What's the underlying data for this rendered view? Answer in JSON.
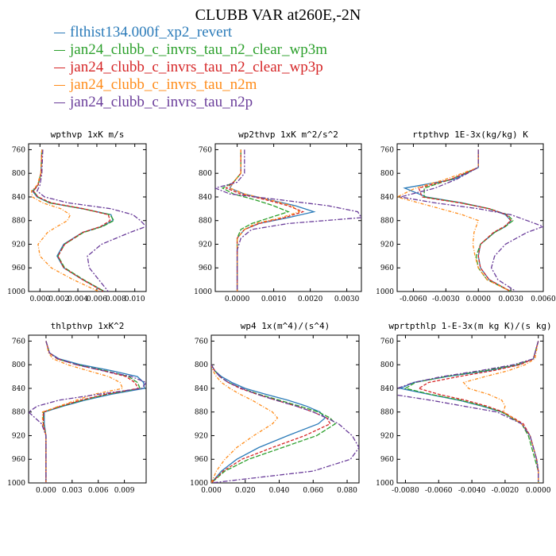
{
  "title": "CLUBB VAR at260E,-2N",
  "legend": [
    {
      "label": "flthist134.000f_xp2_revert",
      "color": "#2b7bb9"
    },
    {
      "label": "jan24_clubb_c_invrs_tau_n2_clear_wp3m",
      "color": "#2ca02c"
    },
    {
      "label": "jan24_clubb_c_invrs_tau_n2_clear_wp3p",
      "color": "#d62728"
    },
    {
      "label": "jan24_clubb_c_invrs_tau_n2m",
      "color": "#ff8c1a"
    },
    {
      "label": "jan24_clubb_c_invrs_tau_n2p",
      "color": "#6a3d9a"
    }
  ],
  "chart_data": [
    {
      "type": "line",
      "title": "wpthvp  1xK m/s",
      "xlim": [
        -0.0012,
        0.0112
      ],
      "ylim": [
        750,
        1000
      ],
      "xticks": [
        0.0,
        0.002,
        0.004,
        0.006,
        0.008,
        0.01
      ],
      "xticklabels": [
        "0.000",
        "0.002",
        "0.004",
        "0.006",
        "0.008",
        "0.010"
      ],
      "yticks": [
        760,
        800,
        840,
        880,
        920,
        960,
        1000
      ],
      "y": [
        760,
        800,
        820,
        830,
        840,
        850,
        860,
        870,
        880,
        890,
        900,
        920,
        940,
        960,
        980,
        1000
      ],
      "series": [
        {
          "x": [
            0.0002,
            0.0001,
            -0.0002,
            -0.0008,
            -0.0003,
            0.001,
            0.0045,
            0.0075,
            0.0077,
            0.0065,
            0.0045,
            0.0025,
            0.0018,
            0.0025,
            0.0045,
            0.0068
          ]
        },
        {
          "x": [
            0.0002,
            0.0001,
            -0.0002,
            -0.0007,
            -0.0002,
            0.001,
            0.0045,
            0.0074,
            0.0078,
            0.0066,
            0.0046,
            0.0026,
            0.0019,
            0.0026,
            0.0046,
            0.0068
          ]
        },
        {
          "x": [
            0.0002,
            0.0001,
            -0.0002,
            -0.0007,
            -0.0002,
            0.0012,
            0.0046,
            0.0072,
            0.0074,
            0.0064,
            0.0045,
            0.0026,
            0.0019,
            0.0025,
            0.0045,
            0.0067
          ]
        },
        {
          "x": [
            0.0002,
            0.0001,
            -0.0003,
            -0.0009,
            -0.0008,
            0.0003,
            0.0022,
            0.0032,
            0.0029,
            0.0018,
            0.0008,
            -0.0002,
            0.0,
            0.0012,
            0.0035,
            0.0062
          ]
        },
        {
          "x": [
            0.0003,
            0.0002,
            0.0,
            -0.0003,
            0.0005,
            0.003,
            0.0075,
            0.0098,
            0.0106,
            0.0112,
            0.0095,
            0.0065,
            0.005,
            0.0052,
            0.0062,
            0.0072
          ]
        }
      ]
    },
    {
      "type": "line",
      "title": "wp2thvp  1xK m^2/s^2",
      "xlim": [
        -0.0006,
        0.0034
      ],
      "ylim": [
        750,
        1000
      ],
      "xticks": [
        0.0,
        0.001,
        0.002,
        0.003
      ],
      "xticklabels": [
        "0.0000",
        "0.0010",
        "0.0020",
        "0.0030"
      ],
      "yticks": [
        760,
        800,
        840,
        880,
        920,
        960,
        1000
      ],
      "y": [
        760,
        800,
        815,
        825,
        835,
        845,
        855,
        865,
        875,
        885,
        895,
        910,
        930,
        960,
        1000
      ],
      "series": [
        {
          "x": [
            0.0001,
            0.0001,
            -0.0001,
            -0.0002,
            0.0002,
            0.0009,
            0.0016,
            0.0021,
            0.0014,
            0.0006,
            0.0002,
            0.0,
            0.0,
            0.0,
            0.0
          ]
        },
        {
          "x": [
            0.0001,
            0.0001,
            -0.0001,
            -0.0004,
            -0.0001,
            0.0005,
            0.001,
            0.0014,
            0.0009,
            0.0004,
            0.0001,
            0.0,
            0.0,
            0.0,
            0.0
          ]
        },
        {
          "x": [
            0.0001,
            0.0001,
            -0.0001,
            -0.0003,
            0.0001,
            0.0008,
            0.0014,
            0.0018,
            0.0013,
            0.0006,
            0.0002,
            0.0,
            0.0,
            0.0,
            0.0
          ]
        },
        {
          "x": [
            0.0001,
            0.0001,
            -0.0001,
            -0.0002,
            0.0002,
            0.0009,
            0.0015,
            0.0017,
            0.0012,
            0.0005,
            0.0002,
            0.0,
            0.0,
            0.0,
            0.0
          ]
        },
        {
          "x": [
            0.0002,
            0.0002,
            0.0,
            -0.0006,
            -0.0002,
            0.0012,
            0.0025,
            0.0033,
            0.0034,
            0.0014,
            0.0004,
            0.0001,
            0.0,
            0.0,
            0.0
          ]
        }
      ]
    },
    {
      "type": "line",
      "title": "rtpthvp  1E-3x(kg/kg) K",
      "xlim": [
        -0.0075,
        0.006
      ],
      "ylim": [
        750,
        1000
      ],
      "xticks": [
        -0.006,
        -0.003,
        0.0,
        0.003,
        0.006
      ],
      "xticklabels": [
        "-0.0060",
        "-0.0030",
        "0.0000",
        "0.0030",
        "0.0060"
      ],
      "yticks": [
        760,
        800,
        840,
        880,
        920,
        960,
        1000
      ],
      "y": [
        760,
        790,
        810,
        825,
        840,
        850,
        860,
        870,
        880,
        890,
        900,
        920,
        940,
        960,
        980,
        1000
      ],
      "series": [
        {
          "x": [
            0.0,
            0.0,
            -0.0022,
            -0.0068,
            -0.0048,
            -0.0015,
            0.001,
            0.0025,
            0.003,
            0.0025,
            0.0015,
            0.0002,
            0.0,
            0.0002,
            0.001,
            0.003
          ]
        },
        {
          "x": [
            0.0,
            0.0,
            -0.0025,
            -0.005,
            -0.005,
            -0.0016,
            0.001,
            0.0027,
            0.0032,
            0.0025,
            0.0015,
            0.0002,
            -0.0002,
            0.0,
            0.0008,
            0.003
          ]
        },
        {
          "x": [
            0.0,
            0.0,
            -0.0025,
            -0.0055,
            -0.0052,
            -0.0017,
            0.001,
            0.0026,
            0.003,
            0.0024,
            0.0014,
            0.0002,
            0.0,
            0.0002,
            0.001,
            0.003
          ]
        },
        {
          "x": [
            0.0,
            0.0,
            -0.003,
            -0.0058,
            -0.0075,
            -0.0055,
            -0.0035,
            -0.0015,
            0.0,
            -0.0002,
            -0.0004,
            -0.0005,
            -0.0003,
            0.0,
            0.0008,
            0.003
          ]
        },
        {
          "x": [
            0.0,
            0.0,
            -0.002,
            -0.004,
            -0.0072,
            -0.004,
            0.0,
            0.003,
            0.0045,
            0.006,
            0.0045,
            0.0025,
            0.0015,
            0.0012,
            0.0018,
            0.0035
          ]
        }
      ]
    },
    {
      "type": "line",
      "title": "thlpthvp  1xK^2",
      "xlim": [
        -0.002,
        0.0115
      ],
      "ylim": [
        750,
        1000
      ],
      "xticks": [
        0.0,
        0.003,
        0.006,
        0.009
      ],
      "xticklabels": [
        "0.000",
        "0.003",
        "0.006",
        "0.009"
      ],
      "yticks": [
        760,
        800,
        840,
        880,
        920,
        960,
        1000
      ],
      "y": [
        760,
        780,
        790,
        800,
        810,
        820,
        830,
        840,
        850,
        860,
        870,
        880,
        900,
        920,
        960,
        1000
      ],
      "series": [
        {
          "x": [
            0.0,
            0.0004,
            0.0015,
            0.004,
            0.0075,
            0.0105,
            0.0112,
            0.0113,
            0.0075,
            0.0045,
            0.002,
            -0.0002,
            -0.0002,
            0.0,
            0.0,
            0.0
          ]
        },
        {
          "x": [
            0.0,
            0.0004,
            0.0013,
            0.0036,
            0.0068,
            0.0095,
            0.0105,
            0.0108,
            0.007,
            0.0042,
            0.0018,
            -0.0003,
            -0.0003,
            0.0,
            0.0,
            0.0
          ]
        },
        {
          "x": [
            0.0,
            0.0004,
            0.0013,
            0.0035,
            0.0065,
            0.0092,
            0.0102,
            0.0106,
            0.0068,
            0.004,
            0.0017,
            -0.0003,
            -0.0003,
            0.0,
            0.0,
            0.0
          ]
        },
        {
          "x": [
            0.0,
            0.0003,
            0.0008,
            0.0025,
            0.0048,
            0.0072,
            0.0085,
            0.0088,
            0.0055,
            0.0035,
            0.0015,
            -0.0004,
            -0.0004,
            0.0,
            0.0,
            0.0
          ]
        },
        {
          "x": [
            0.0,
            0.0004,
            0.0014,
            0.0035,
            0.0065,
            0.0098,
            0.0115,
            0.011,
            0.006,
            0.0015,
            -0.001,
            -0.002,
            -0.0005,
            0.0,
            0.0,
            0.0
          ]
        }
      ]
    },
    {
      "type": "line",
      "title": "wp4  1x(m^4)/(s^4)",
      "xlim": [
        0.0,
        0.087
      ],
      "ylim": [
        750,
        1000
      ],
      "xticks": [
        0.0,
        0.02,
        0.04,
        0.06,
        0.08
      ],
      "xticklabels": [
        "0.000",
        "0.020",
        "0.040",
        "0.060",
        "0.080"
      ],
      "yticks": [
        760,
        800,
        840,
        880,
        920,
        960,
        1000
      ],
      "y": [
        800,
        810,
        820,
        830,
        840,
        850,
        860,
        870,
        880,
        890,
        900,
        920,
        940,
        960,
        980,
        1000
      ],
      "series": [
        {
          "x": [
            0.0,
            0.002,
            0.006,
            0.012,
            0.02,
            0.032,
            0.045,
            0.056,
            0.064,
            0.067,
            0.063,
            0.045,
            0.028,
            0.015,
            0.006,
            0.0
          ]
        },
        {
          "x": [
            0.0,
            0.002,
            0.005,
            0.01,
            0.018,
            0.028,
            0.04,
            0.052,
            0.063,
            0.07,
            0.073,
            0.062,
            0.042,
            0.022,
            0.008,
            0.0
          ]
        },
        {
          "x": [
            0.0,
            0.002,
            0.005,
            0.01,
            0.017,
            0.027,
            0.038,
            0.05,
            0.06,
            0.068,
            0.07,
            0.055,
            0.036,
            0.018,
            0.007,
            0.0
          ]
        },
        {
          "x": [
            0.0,
            0.001,
            0.003,
            0.006,
            0.011,
            0.017,
            0.024,
            0.03,
            0.036,
            0.039,
            0.036,
            0.025,
            0.015,
            0.008,
            0.003,
            0.0
          ]
        },
        {
          "x": [
            0.0,
            0.002,
            0.005,
            0.01,
            0.018,
            0.027,
            0.038,
            0.05,
            0.06,
            0.068,
            0.075,
            0.083,
            0.087,
            0.082,
            0.06,
            0.0
          ]
        }
      ]
    },
    {
      "type": "line",
      "title": "wprtpthlp  1-E-3x(m kg K)/(s kg)",
      "xlim": [
        -0.0085,
        0.0003
      ],
      "ylim": [
        750,
        1000
      ],
      "xticks": [
        -0.008,
        -0.006,
        -0.004,
        -0.002,
        0.0
      ],
      "xticklabels": [
        "-0.0080",
        "-0.0060",
        "-0.0040",
        "-0.0020",
        "0.0000"
      ],
      "yticks": [
        760,
        800,
        840,
        880,
        920,
        960,
        1000
      ],
      "y": [
        760,
        790,
        800,
        810,
        820,
        830,
        840,
        850,
        860,
        870,
        880,
        900,
        920,
        940,
        960,
        980,
        1000
      ],
      "series": [
        {
          "x": [
            0.0,
            -0.0003,
            -0.0012,
            -0.003,
            -0.0055,
            -0.0075,
            -0.0083,
            -0.0066,
            -0.0048,
            -0.0034,
            -0.0022,
            -0.001,
            -0.0005,
            -0.0003,
            -0.0001,
            0.0,
            0.0
          ]
        },
        {
          "x": [
            0.0,
            -0.0003,
            -0.0013,
            -0.0032,
            -0.0056,
            -0.0074,
            -0.008,
            -0.0065,
            -0.0047,
            -0.0033,
            -0.0022,
            -0.001,
            -0.0006,
            -0.0004,
            -0.0002,
            0.0,
            0.0
          ]
        },
        {
          "x": [
            0.0,
            -0.0003,
            -0.0011,
            -0.0027,
            -0.0048,
            -0.0066,
            -0.0072,
            -0.006,
            -0.0044,
            -0.0031,
            -0.0021,
            -0.0009,
            -0.0005,
            -0.0003,
            -0.0001,
            0.0,
            0.0
          ]
        },
        {
          "x": [
            0.0,
            -0.0002,
            -0.0008,
            -0.0018,
            -0.0032,
            -0.0045,
            -0.0042,
            -0.003,
            -0.0022,
            -0.002,
            -0.0021,
            -0.001,
            -0.0005,
            -0.0003,
            -0.0001,
            0.0,
            0.0
          ]
        },
        {
          "x": [
            0.0,
            -0.0003,
            -0.0015,
            -0.0035,
            -0.0058,
            -0.0075,
            -0.0085,
            -0.0088,
            -0.0065,
            -0.0045,
            -0.0025,
            -0.001,
            -0.0005,
            -0.0003,
            -0.0001,
            0.0,
            0.0
          ]
        }
      ]
    }
  ]
}
